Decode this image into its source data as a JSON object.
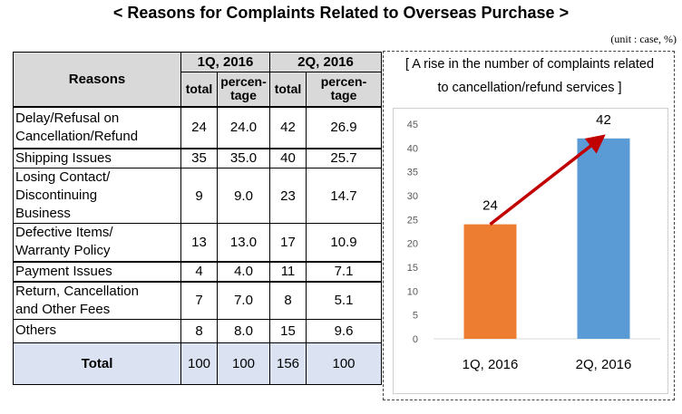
{
  "title": "< Reasons for Complaints Related to Overseas Purchase >",
  "unit_note": "(unit : case, %)",
  "table": {
    "header_reasons": "Reasons",
    "quarters": [
      "1Q, 2016",
      "2Q, 2016"
    ],
    "sub_total": "total",
    "sub_pct_1": "percen-",
    "sub_pct_2": "tage",
    "rows": [
      {
        "reason_lines": [
          "Delay/Refusal on",
          "Cancellation/Refund"
        ],
        "q1_total": "24",
        "q1_pct": "24.0",
        "q2_total": "42",
        "q2_pct": "26.9"
      },
      {
        "reason_lines": [
          "Shipping Issues"
        ],
        "q1_total": "35",
        "q1_pct": "35.0",
        "q2_total": "40",
        "q2_pct": "25.7"
      },
      {
        "reason_lines": [
          "Losing Contact/",
          "Discontinuing",
          "Business"
        ],
        "q1_total": "9",
        "q1_pct": "9.0",
        "q2_total": "23",
        "q2_pct": "14.7"
      },
      {
        "reason_lines": [
          "Defective Items/",
          "Warranty Policy"
        ],
        "q1_total": "13",
        "q1_pct": "13.0",
        "q2_total": "17",
        "q2_pct": "10.9"
      },
      {
        "reason_lines": [
          "Payment Issues"
        ],
        "q1_total": "4",
        "q1_pct": "4.0",
        "q2_total": "11",
        "q2_pct": "7.1"
      },
      {
        "reason_lines": [
          "Return, Cancellation",
          "and Other Fees"
        ],
        "q1_total": "7",
        "q1_pct": "7.0",
        "q2_total": "8",
        "q2_pct": "5.1"
      },
      {
        "reason_lines": [
          "Others"
        ],
        "q1_total": "8",
        "q1_pct": "8.0",
        "q2_total": "15",
        "q2_pct": "9.6"
      }
    ],
    "total_row": {
      "label": "Total",
      "q1_total": "100",
      "q1_pct": "100",
      "q2_total": "156",
      "q2_pct": "100"
    }
  },
  "chart_data": {
    "type": "bar",
    "title_lines": [
      "[ A rise in the number of complaints related",
      "to cancellation/refund services ]"
    ],
    "categories": [
      "1Q, 2016",
      "2Q, 2016"
    ],
    "values": [
      24,
      42
    ],
    "data_labels": [
      "24",
      "42"
    ],
    "colors": [
      "#ed7d31",
      "#5b9bd5"
    ],
    "arrow_color": "#c00000",
    "ylim": [
      0,
      45
    ],
    "yticks": [
      0,
      5,
      10,
      15,
      20,
      25,
      30,
      35,
      40,
      45
    ],
    "ytick_labels": [
      "0",
      "5",
      "10",
      "15",
      "20",
      "25",
      "30",
      "35",
      "40",
      "45"
    ],
    "grid": false,
    "xlabel": "",
    "ylabel": ""
  }
}
